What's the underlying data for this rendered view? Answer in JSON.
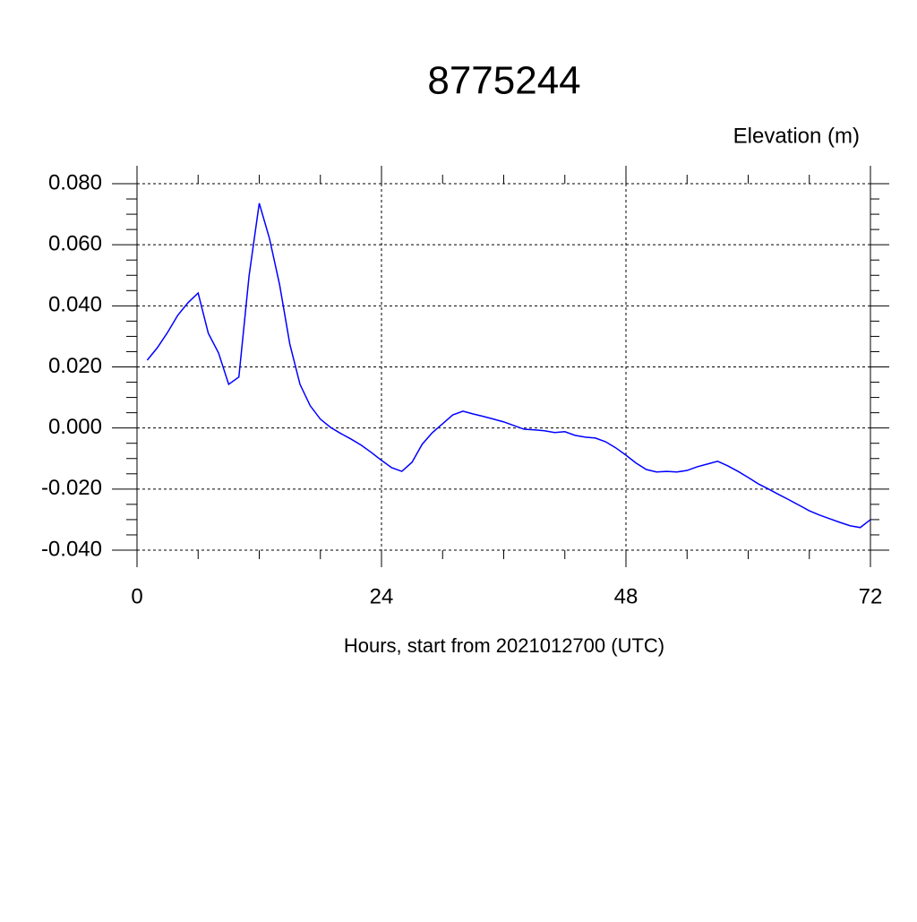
{
  "chart_data": {
    "type": "line",
    "title": "8775244",
    "y_label": "Elevation (m)",
    "x_label": "Hours, start from 2021012700 (UTC)",
    "xlim": [
      0,
      72
    ],
    "xticks": [
      0,
      24,
      48,
      72
    ],
    "ylim": [
      -0.04,
      0.08
    ],
    "yticks": [
      {
        "value": -0.04,
        "label": "-0.040"
      },
      {
        "value": -0.02,
        "label": "-0.020"
      },
      {
        "value": 0,
        "label": "0.000"
      },
      {
        "value": 0.02,
        "label": "0.020"
      },
      {
        "value": 0.04,
        "label": "0.040"
      },
      {
        "value": 0.06,
        "label": "0.060"
      },
      {
        "value": 0.08,
        "label": "0.080"
      }
    ],
    "grid": true,
    "x": [
      1,
      2,
      3,
      4,
      5,
      6,
      7,
      8,
      9,
      10,
      11,
      12,
      13,
      14,
      15,
      16,
      17,
      18,
      19,
      20,
      21,
      22,
      23,
      24,
      25,
      26,
      27,
      28,
      29,
      30,
      31,
      32,
      33,
      34,
      35,
      36,
      37,
      38,
      39,
      40,
      41,
      42,
      43,
      44,
      45,
      46,
      47,
      48,
      49,
      50,
      51,
      52,
      53,
      54,
      55,
      56,
      57,
      58,
      59,
      60,
      61,
      62,
      63,
      64,
      65,
      66,
      67,
      68,
      69,
      70,
      71,
      72
    ],
    "series": [
      {
        "color": "#0000ff",
        "values": [
          0.0222,
          0.0263,
          0.0313,
          0.0369,
          0.041,
          0.0442,
          0.031,
          0.0246,
          0.0143,
          0.0167,
          0.0498,
          0.0736,
          0.0621,
          0.0469,
          0.0275,
          0.0143,
          0.0073,
          0.0029,
          0.0002,
          -0.0018,
          -0.0036,
          -0.0056,
          -0.008,
          -0.0106,
          -0.013,
          -0.0142,
          -0.0112,
          -0.0053,
          -0.0015,
          0.0014,
          0.0043,
          0.0055,
          0.0046,
          0.0038,
          0.0029,
          0.002,
          0.0008,
          -0.0004,
          -0.0006,
          -0.0009,
          -0.0015,
          -0.0012,
          -0.0024,
          -0.003,
          -0.0033,
          -0.0045,
          -0.0065,
          -0.0089,
          -0.0115,
          -0.0136,
          -0.0144,
          -0.0142,
          -0.0144,
          -0.0139,
          -0.0127,
          -0.0118,
          -0.0109,
          -0.0124,
          -0.0142,
          -0.0162,
          -0.0183,
          -0.02,
          -0.0218,
          -0.0235,
          -0.0253,
          -0.0271,
          -0.0285,
          -0.0297,
          -0.0309,
          -0.032,
          -0.0326,
          -0.03
        ]
      }
    ]
  }
}
